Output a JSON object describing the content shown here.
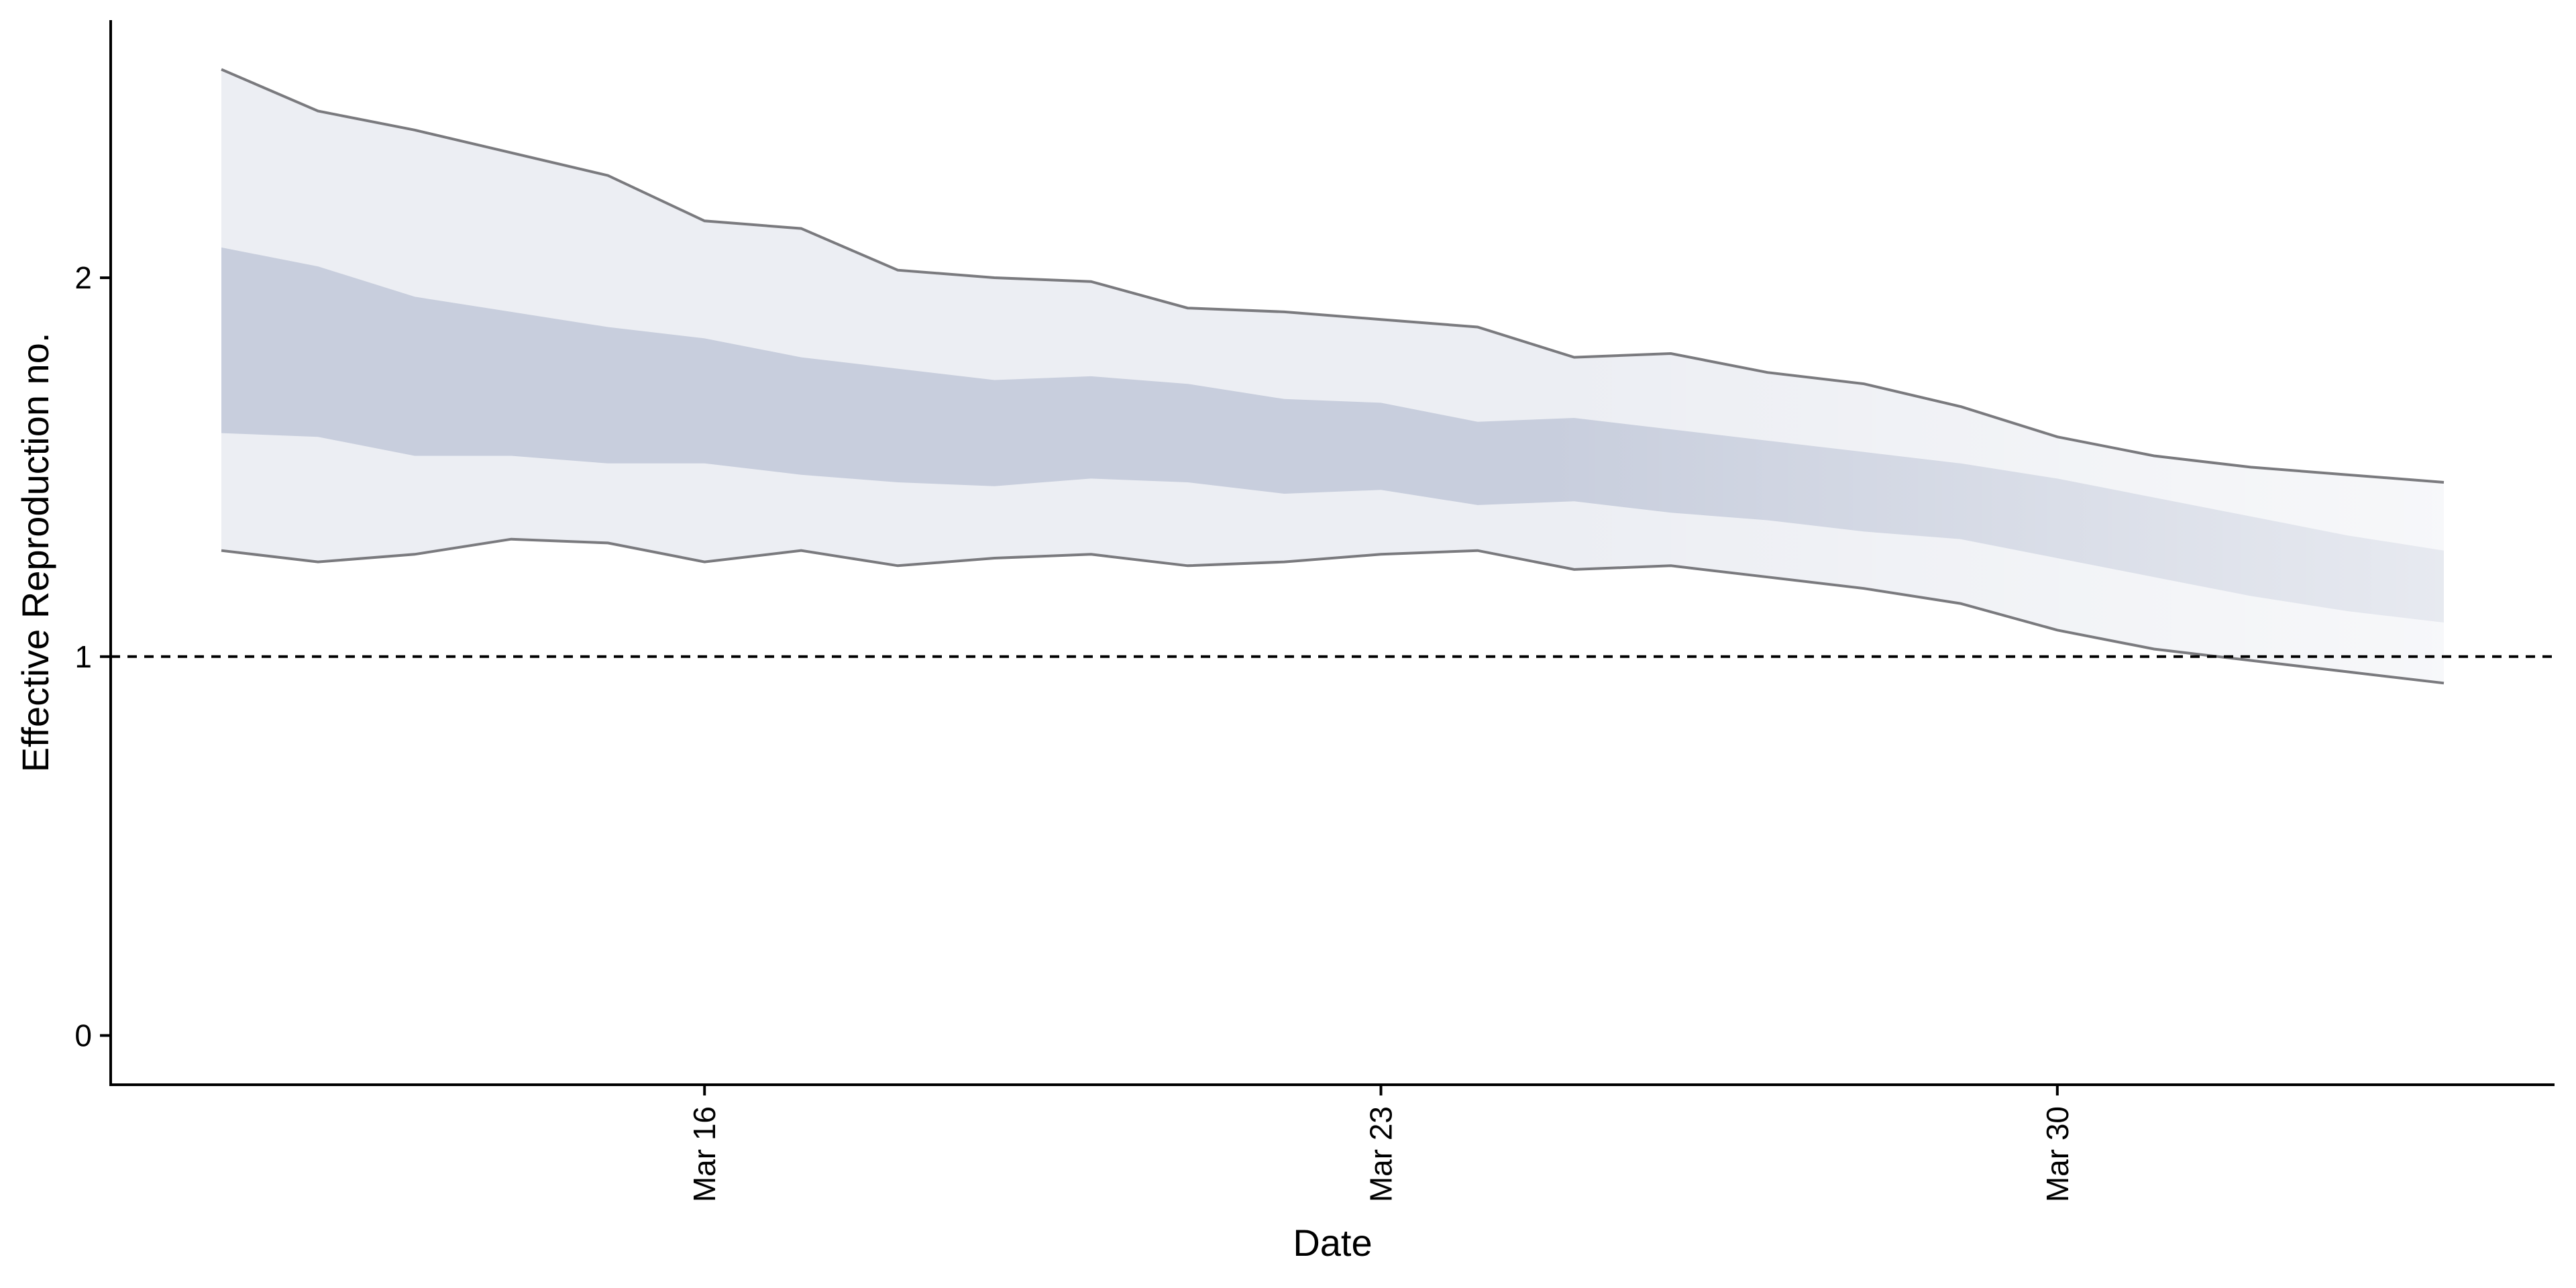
{
  "chart_data": {
    "type": "area",
    "title": "",
    "xlabel": "Date",
    "ylabel": "Effective Reproduction no.",
    "x": [
      "2020-03-11",
      "2020-03-12",
      "2020-03-13",
      "2020-03-14",
      "2020-03-15",
      "2020-03-16",
      "2020-03-17",
      "2020-03-18",
      "2020-03-19",
      "2020-03-20",
      "2020-03-21",
      "2020-03-22",
      "2020-03-23",
      "2020-03-24",
      "2020-03-25",
      "2020-03-26",
      "2020-03-27",
      "2020-03-28",
      "2020-03-29",
      "2020-03-30",
      "2020-03-31",
      "2020-04-01",
      "2020-04-02",
      "2020-04-03"
    ],
    "x_ticks": [
      {
        "date": "2020-03-16",
        "label": "Mar 16"
      },
      {
        "date": "2020-03-23",
        "label": "Mar 23"
      },
      {
        "date": "2020-03-30",
        "label": "Mar 30"
      }
    ],
    "y_ticks": [
      0,
      1,
      2
    ],
    "ylim": [
      -0.13,
      2.68
    ],
    "reference_line": {
      "y": 1,
      "style": "dashed",
      "color": "#000000"
    },
    "series": [
      {
        "band": "outer",
        "lower": [
          1.28,
          1.25,
          1.27,
          1.31,
          1.3,
          1.25,
          1.28,
          1.24,
          1.26,
          1.27,
          1.24,
          1.25,
          1.27,
          1.28,
          1.23,
          1.24,
          1.21,
          1.18,
          1.14,
          1.07,
          1.02,
          0.99,
          0.96,
          0.93
        ],
        "upper": [
          2.55,
          2.44,
          2.39,
          2.33,
          2.27,
          2.15,
          2.13,
          2.02,
          2.0,
          1.99,
          1.92,
          1.91,
          1.89,
          1.87,
          1.79,
          1.8,
          1.75,
          1.72,
          1.66,
          1.58,
          1.53,
          1.5,
          1.48,
          1.46
        ]
      },
      {
        "band": "inner",
        "lower": [
          1.59,
          1.58,
          1.53,
          1.53,
          1.51,
          1.51,
          1.48,
          1.46,
          1.45,
          1.47,
          1.46,
          1.43,
          1.44,
          1.4,
          1.41,
          1.38,
          1.36,
          1.33,
          1.31,
          1.26,
          1.21,
          1.16,
          1.12,
          1.09
        ],
        "upper": [
          2.08,
          2.03,
          1.95,
          1.91,
          1.87,
          1.84,
          1.79,
          1.76,
          1.73,
          1.74,
          1.72,
          1.68,
          1.67,
          1.62,
          1.63,
          1.6,
          1.57,
          1.54,
          1.51,
          1.47,
          1.42,
          1.37,
          1.32,
          1.28
        ]
      }
    ],
    "colors": {
      "outer_band": "#eceef3",
      "inner_band": "#c8cedd",
      "band_edge": "#7a7a7e",
      "axis": "#000000"
    },
    "forecast_fade": "band and edge line colors fade to lighter tones from about Mar 26 onward"
  }
}
